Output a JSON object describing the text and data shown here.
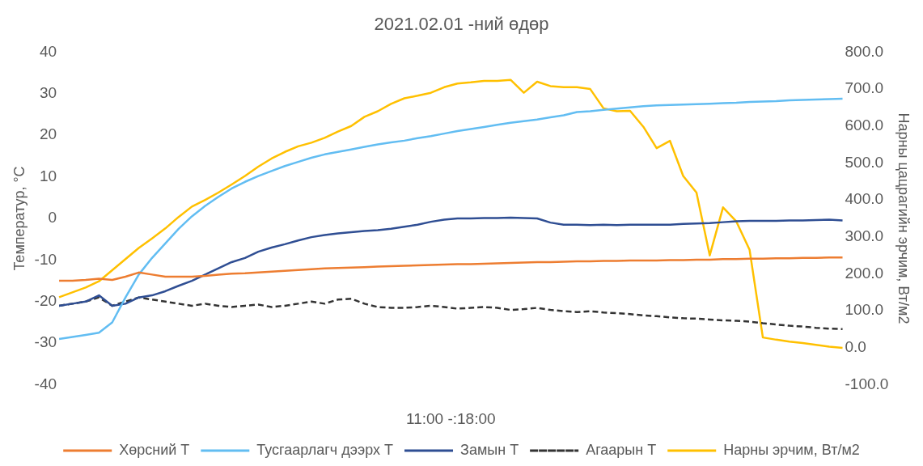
{
  "chart_data": {
    "type": "line",
    "title": "2021.02.01 -ний өдөр",
    "xlabel": "11:00 -:18:00",
    "ylabel": "Температур, °C",
    "y2label": "Нарны цацрагийн эрчим, Вт/м2",
    "categories": [
      null,
      null,
      null,
      null,
      null,
      null,
      null,
      null,
      null,
      null,
      null,
      null,
      null,
      null,
      null,
      null,
      null,
      null,
      null,
      null,
      null,
      null,
      null,
      null,
      null,
      null,
      null,
      null,
      null,
      null,
      null,
      null,
      null,
      null,
      null,
      null,
      null,
      null,
      null,
      null,
      null,
      null,
      null,
      null,
      null,
      null,
      null,
      null,
      null,
      null,
      null,
      null,
      null,
      null,
      null,
      null,
      null,
      null,
      null,
      null
    ],
    "ylim": [
      -40,
      40
    ],
    "yticks": [
      -40,
      -30,
      -20,
      -10,
      0,
      10,
      20,
      30,
      40
    ],
    "y2lim": [
      -100,
      800
    ],
    "y2ticks": [
      {
        "value": -100,
        "label": "-100.0"
      },
      {
        "value": 0,
        "label": "0.0"
      },
      {
        "value": 100,
        "label": "100.0"
      },
      {
        "value": 200,
        "label": "200.0"
      },
      {
        "value": 300,
        "label": "300.0"
      },
      {
        "value": 400,
        "label": "400.0"
      },
      {
        "value": 500,
        "label": "500.0"
      },
      {
        "value": 600,
        "label": "600.0"
      },
      {
        "value": 700,
        "label": "700.0"
      },
      {
        "value": 800,
        "label": "800.0"
      }
    ],
    "legend": "bottom",
    "marker": "none",
    "series": [
      {
        "name": "Хөрсний Т",
        "color": "#ed7d31",
        "line_style": "solid",
        "values": [
          -15,
          -15,
          -14.8,
          -14.5,
          -14.8,
          -14,
          -13,
          -13.5,
          -14,
          -14,
          -14,
          -13.8,
          -13.5,
          -13.3,
          -13.2,
          -13,
          -12.8,
          -12.6,
          -12.4,
          -12.2,
          -12,
          -11.9,
          -11.8,
          -11.7,
          -11.6,
          -11.5,
          -11.4,
          -11.3,
          -11.2,
          -11.1,
          -11,
          -11,
          -10.9,
          -10.8,
          -10.7,
          -10.6,
          -10.5,
          -10.5,
          -10.4,
          -10.3,
          -10.3,
          -10.2,
          -10.2,
          -10.1,
          -10.1,
          -10.1,
          -10,
          -10,
          -9.9,
          -9.9,
          -9.8,
          -9.8,
          -9.7,
          -9.7,
          -9.6,
          -9.6,
          -9.5,
          -9.5,
          -9.4,
          -9.4
        ]
      },
      {
        "name": "Тусгаарлагч дээрх Т",
        "color": "#62bdf2",
        "line_style": "solid",
        "values": [
          -29,
          -28.5,
          -28,
          -27.5,
          -25,
          -19,
          -13.5,
          -9.5,
          -6,
          -2.5,
          0.5,
          3,
          5.2,
          7.2,
          8.8,
          10.2,
          11.4,
          12.6,
          13.6,
          14.6,
          15.4,
          16,
          16.6,
          17.2,
          17.8,
          18.3,
          18.7,
          19.3,
          19.8,
          20.4,
          21,
          21.5,
          22,
          22.5,
          23,
          23.4,
          23.8,
          24.3,
          24.8,
          25.6,
          25.8,
          26.1,
          26.4,
          26.7,
          27,
          27.2,
          27.3,
          27.4,
          27.5,
          27.6,
          27.7,
          27.8,
          28,
          28.1,
          28.2,
          28.4,
          28.5,
          28.6,
          28.7,
          28.8
        ]
      },
      {
        "name": "Замын Т",
        "color": "#2f4e93",
        "line_style": "solid",
        "values": [
          -21,
          -20.5,
          -20,
          -18.5,
          -21,
          -20.5,
          -19,
          -18.5,
          -17.5,
          -16.2,
          -15,
          -13.5,
          -12,
          -10.5,
          -9.5,
          -8,
          -7,
          -6.2,
          -5.3,
          -4.5,
          -4,
          -3.6,
          -3.3,
          -3,
          -2.8,
          -2.5,
          -2,
          -1.5,
          -0.8,
          -0.3,
          0,
          0,
          0.1,
          0.1,
          0.2,
          0.1,
          0,
          -1,
          -1.5,
          -1.5,
          -1.6,
          -1.5,
          -1.6,
          -1.5,
          -1.5,
          -1.5,
          -1.5,
          -1.3,
          -1.2,
          -1.1,
          -0.9,
          -0.7,
          -0.6,
          -0.6,
          -0.6,
          -0.5,
          -0.5,
          -0.4,
          -0.3,
          -0.5
        ]
      },
      {
        "name": "Агаарын Т",
        "color": "#333333",
        "line_style": "dashed",
        "values": [
          -21,
          -20.5,
          -20,
          -19,
          -21,
          -20,
          -19,
          -19.5,
          -20,
          -20.5,
          -21,
          -20.5,
          -21,
          -21.3,
          -21,
          -20.7,
          -21.3,
          -21,
          -20.5,
          -20,
          -20.5,
          -19.5,
          -19.3,
          -20.5,
          -21.3,
          -21.5,
          -21.5,
          -21.3,
          -21,
          -21.3,
          -21.7,
          -21.5,
          -21.3,
          -21.5,
          -22,
          -21.8,
          -21.5,
          -22,
          -22.3,
          -22.5,
          -22.3,
          -22.6,
          -22.8,
          -23,
          -23.3,
          -23.5,
          -23.8,
          -24,
          -24.1,
          -24.3,
          -24.5,
          -24.6,
          -24.8,
          -25.2,
          -25.5,
          -25.8,
          -26,
          -26.3,
          -26.5,
          -26.6
        ]
      },
      {
        "name": "Нарны эрчим, Вт/м2",
        "color": "#ffc000",
        "line_style": "solid",
        "axis": "y2",
        "values": [
          137,
          150,
          163,
          180,
          210,
          240,
          270,
          296,
          323,
          354,
          382,
          400,
          420,
          442,
          465,
          490,
          512,
          530,
          545,
          555,
          568,
          585,
          600,
          625,
          640,
          660,
          675,
          682,
          690,
          705,
          715,
          718,
          722,
          722,
          725,
          690,
          720,
          708,
          705,
          705,
          700,
          648,
          640,
          641,
          598,
          540,
          560,
          465,
          420,
          250,
          380,
          342,
          265,
          28,
          22,
          17,
          13,
          8,
          3,
          0
        ]
      }
    ]
  }
}
